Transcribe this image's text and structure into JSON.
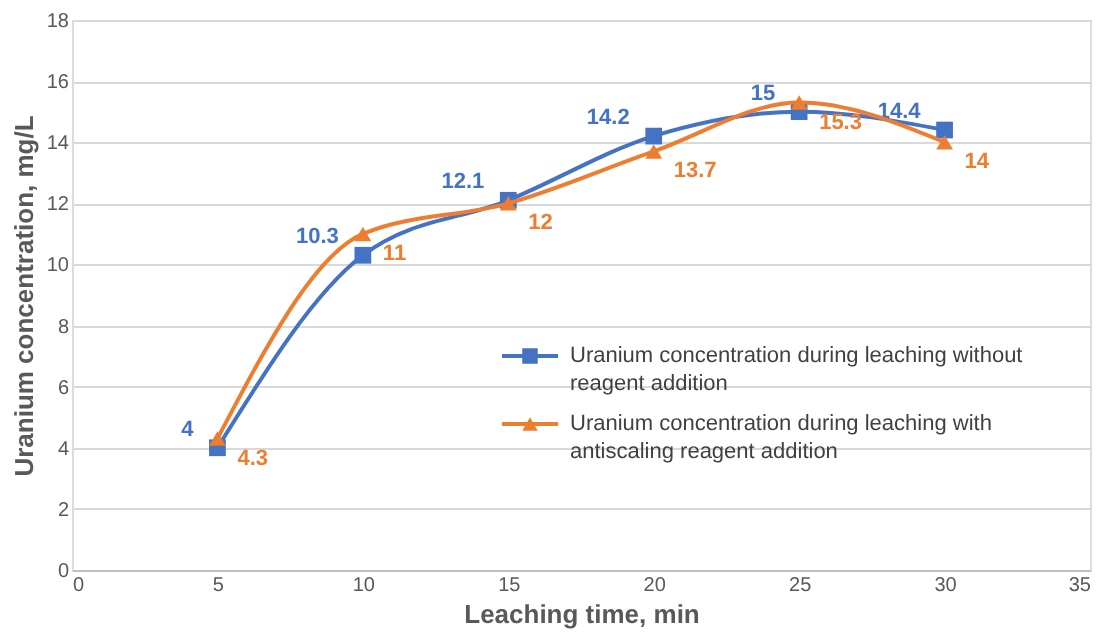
{
  "chart_data": {
    "type": "line",
    "xlabel": "Leaching time, min",
    "ylabel": "Uranium concentration, mg/L",
    "x": [
      5,
      10,
      15,
      20,
      25,
      30
    ],
    "series": [
      {
        "name": "Uranium concentration during leaching without reagent addition",
        "color": "#4472c4",
        "marker": "square",
        "values": [
          4,
          10.3,
          12.1,
          14.2,
          15,
          14.4
        ]
      },
      {
        "name": "Uranium concentration during leaching with antiscaling reagent addition",
        "color": "#ed7d31",
        "marker": "triangle",
        "values": [
          4.3,
          11,
          12,
          13.7,
          15.3,
          14
        ]
      }
    ],
    "xlim": [
      0,
      35
    ],
    "xticks": [
      0,
      5,
      10,
      15,
      20,
      25,
      30,
      35
    ],
    "ylim": [
      0,
      18
    ],
    "yticks": [
      0,
      2,
      4,
      6,
      8,
      10,
      12,
      14,
      16,
      18
    ],
    "grid": "y",
    "legend": "right",
    "data_labels": true,
    "line_style": "solid"
  }
}
